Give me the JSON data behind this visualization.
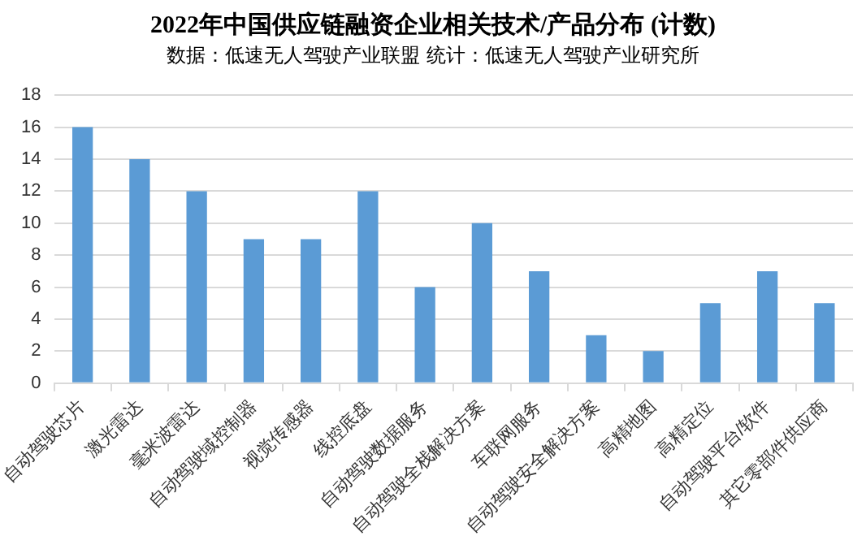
{
  "chart_data": {
    "type": "bar",
    "title": "2022年中国供应链融资企业相关技术/产品分布 (计数)",
    "subtitle": "数据：低速无人驾驶产业联盟  统计：低速无人驾驶产业研究所",
    "categories": [
      "自动驾驶芯片",
      "激光雷达",
      "毫米波雷达",
      "自动驾驶域控制器",
      "视觉传感器",
      "线控底盘",
      "自动驾驶数据服务",
      "自动驾驶全栈解决方案",
      "车联网服务",
      "自动驾驶安全解决方案",
      "高精地图",
      "高精定位",
      "自动驾驶平台/软件",
      "其它零部件供应商"
    ],
    "values": [
      16,
      14,
      12,
      9,
      9,
      12,
      6,
      10,
      7,
      3,
      2,
      5,
      7,
      5
    ],
    "color": "#5b9bd5",
    "ylim": [
      0,
      18
    ],
    "yticks": [
      0,
      2,
      4,
      6,
      8,
      10,
      12,
      14,
      16,
      18
    ],
    "grid": "y",
    "legend": false
  }
}
